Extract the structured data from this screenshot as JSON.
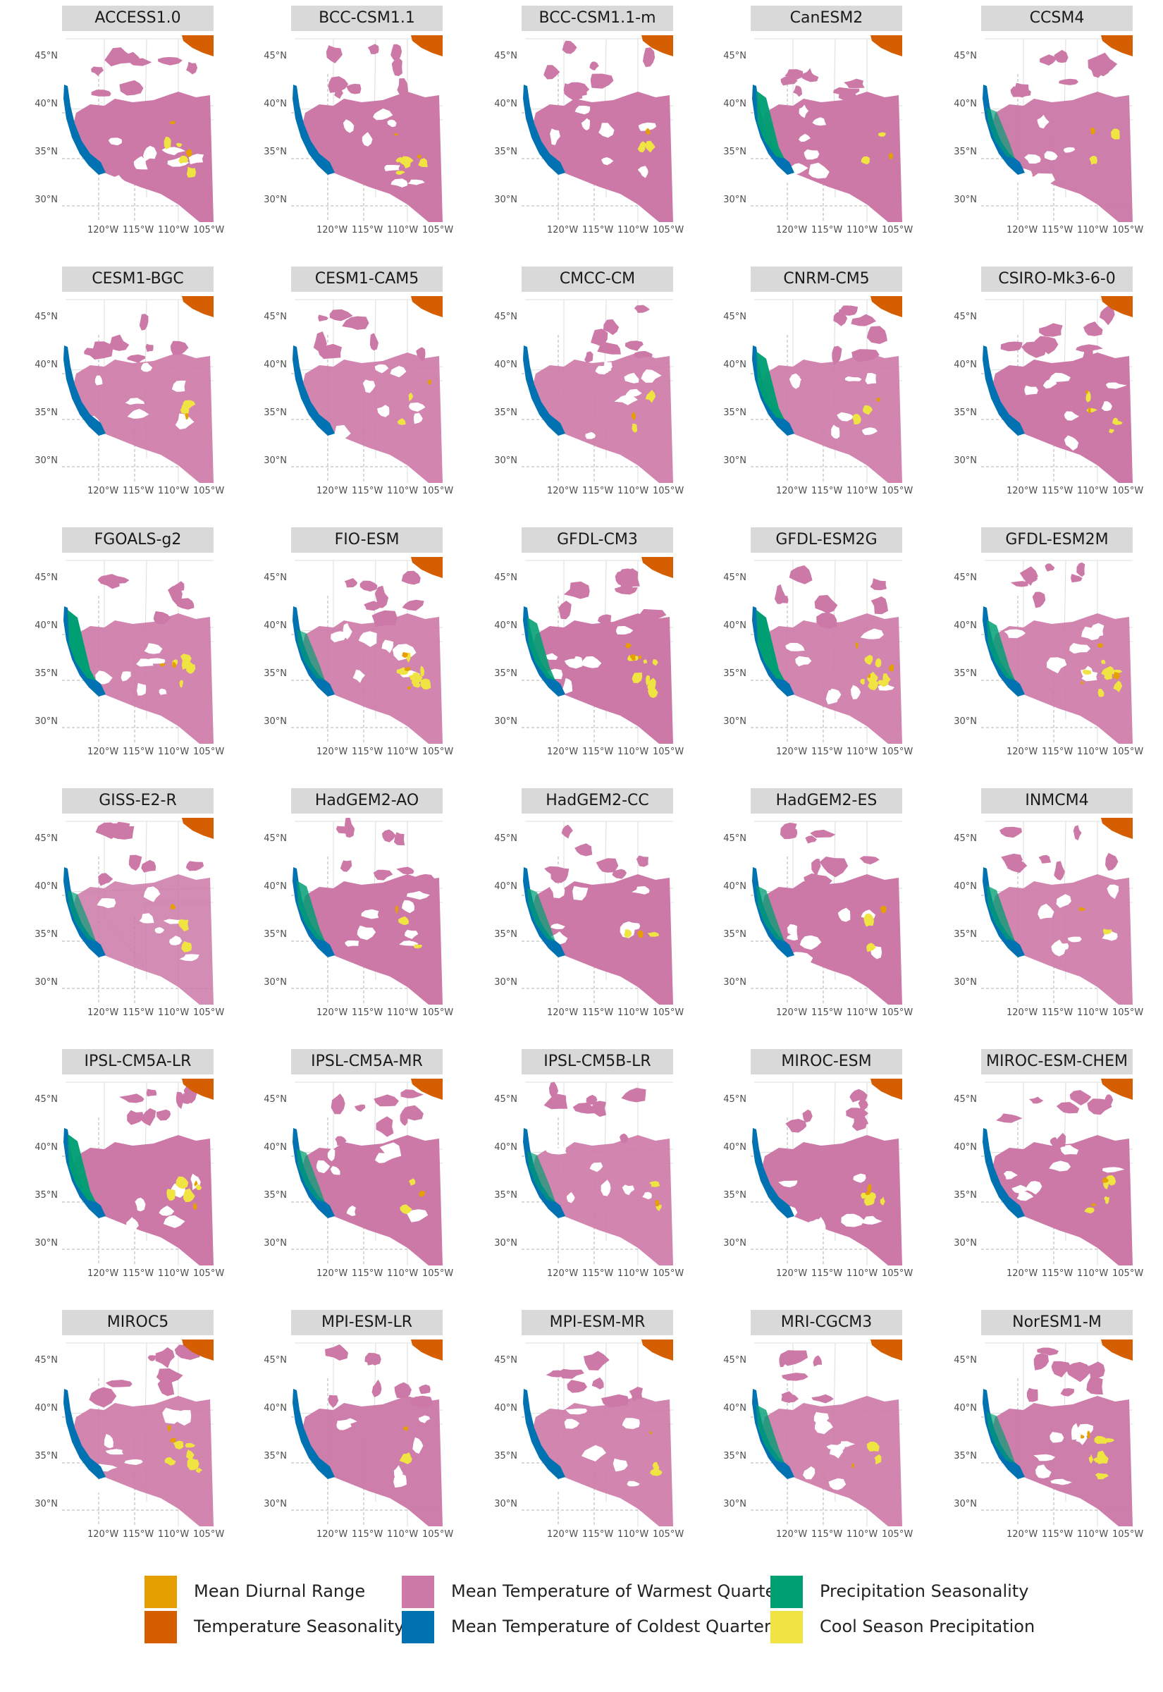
{
  "colors": {
    "mean_diurnal_range": "#e69f00",
    "temperature_seasonality": "#d55e00",
    "mean_temp_warmest_quarter": "#cc79a7",
    "mean_temp_coldest_quarter": "#0072b2",
    "precipitation_seasonality": "#009e73",
    "cool_season_precipitation": "#f0e442"
  },
  "axes": {
    "y_ticks": [
      "45°N",
      "40°N",
      "35°N",
      "30°N"
    ],
    "x_ticks": [
      "120°W",
      "115°W",
      "110°W",
      "105°W"
    ]
  },
  "legend": [
    {
      "label": "Mean Diurnal Range",
      "color": "#e69f00"
    },
    {
      "label": "Temperature Seasonality",
      "color": "#d55e00"
    },
    {
      "label": "Mean Temperature of Warmest Quarter",
      "color": "#cc79a7"
    },
    {
      "label": "Mean Temperature of Coldest Quarter",
      "color": "#0072b2"
    },
    {
      "label": "Precipitation Seasonality",
      "color": "#009e73"
    },
    {
      "label": "Cool Season Precipitation",
      "color": "#f0e442"
    }
  ],
  "panels": [
    {
      "title": "ACCESS1.0",
      "green": 0.05,
      "yellow": 0.5,
      "orangeNE": 1,
      "pink": 1.0
    },
    {
      "title": "BCC-CSM1.1",
      "green": 0.05,
      "yellow": 0.6,
      "orangeNE": 1,
      "pink": 1.0
    },
    {
      "title": "BCC-CSM1.1-m",
      "green": 0.1,
      "yellow": 0.2,
      "orangeNE": 1,
      "pink": 1.0
    },
    {
      "title": "CanESM2",
      "green": 0.9,
      "yellow": 0.3,
      "orangeNE": 1,
      "pink": 1.0
    },
    {
      "title": "CCSM4",
      "green": 0.2,
      "yellow": 0.2,
      "orangeNE": 1,
      "pink": 0.9
    },
    {
      "title": "CESM1-BGC",
      "green": 0.1,
      "yellow": 0.4,
      "orangeNE": 1,
      "pink": 0.8
    },
    {
      "title": "CESM1-CAM5",
      "green": 0.05,
      "yellow": 0.2,
      "orangeNE": 1,
      "pink": 0.8
    },
    {
      "title": "CMCC-CM",
      "green": 0.05,
      "yellow": 0.3,
      "orangeNE": 0,
      "pink": 0.8
    },
    {
      "title": "CNRM-CM5",
      "green": 0.9,
      "yellow": 0.2,
      "orangeNE": 1,
      "pink": 0.8
    },
    {
      "title": "CSIRO-Mk3-6-0",
      "green": 0.05,
      "yellow": 0.6,
      "orangeNE": 1,
      "pink": 1.0
    },
    {
      "title": "FGOALS-g2",
      "green": 1.0,
      "yellow": 0.6,
      "orangeNE": 0,
      "pink": 0.8
    },
    {
      "title": "FIO-ESM",
      "green": 0.2,
      "yellow": 1.0,
      "orangeNE": 1,
      "pink": 0.8
    },
    {
      "title": "GFDL-CM3",
      "green": 0.7,
      "yellow": 0.9,
      "orangeNE": 1,
      "pink": 1.0
    },
    {
      "title": "GFDL-ESM2G",
      "green": 1.0,
      "yellow": 0.9,
      "orangeNE": 0,
      "pink": 0.8
    },
    {
      "title": "GFDL-ESM2M",
      "green": 0.6,
      "yellow": 1.0,
      "orangeNE": 0,
      "pink": 0.8
    },
    {
      "title": "GISS-E2-R",
      "green": 0.2,
      "yellow": 0.3,
      "orangeNE": 1,
      "pink": 0.7
    },
    {
      "title": "HadGEM2-AO",
      "green": 0.6,
      "yellow": 0.2,
      "orangeNE": 0,
      "pink": 1.0
    },
    {
      "title": "HadGEM2-CC",
      "green": 0.3,
      "yellow": 0.2,
      "orangeNE": 0,
      "pink": 1.0
    },
    {
      "title": "HadGEM2-ES",
      "green": 0.4,
      "yellow": 0.2,
      "orangeNE": 0,
      "pink": 1.0
    },
    {
      "title": "INMCM4",
      "green": 0.4,
      "yellow": 0.1,
      "orangeNE": 1,
      "pink": 0.8
    },
    {
      "title": "IPSL-CM5A-LR",
      "green": 0.9,
      "yellow": 0.6,
      "orangeNE": 1,
      "pink": 1.0
    },
    {
      "title": "IPSL-CM5A-MR",
      "green": 0.3,
      "yellow": 0.2,
      "orangeNE": 1,
      "pink": 1.0
    },
    {
      "title": "IPSL-CM5B-LR",
      "green": 0.2,
      "yellow": 0.2,
      "orangeNE": 0,
      "pink": 0.8
    },
    {
      "title": "MIROC-ESM",
      "green": 0.05,
      "yellow": 0.5,
      "orangeNE": 1,
      "pink": 1.0
    },
    {
      "title": "MIROC-ESM-CHEM",
      "green": 0.05,
      "yellow": 0.6,
      "orangeNE": 1,
      "pink": 1.0
    },
    {
      "title": "MIROC5",
      "green": 0.05,
      "yellow": 0.7,
      "orangeNE": 1,
      "pink": 0.8
    },
    {
      "title": "MPI-ESM-LR",
      "green": 0.1,
      "yellow": 0.2,
      "orangeNE": 1,
      "pink": 0.9
    },
    {
      "title": "MPI-ESM-MR",
      "green": 0.05,
      "yellow": 0.2,
      "orangeNE": 1,
      "pink": 0.8
    },
    {
      "title": "MRI-CGCM3",
      "green": 0.5,
      "yellow": 0.3,
      "orangeNE": 1,
      "pink": 0.8
    },
    {
      "title": "NorESM1-M",
      "green": 0.2,
      "yellow": 0.8,
      "orangeNE": 1,
      "pink": 0.9
    }
  ]
}
